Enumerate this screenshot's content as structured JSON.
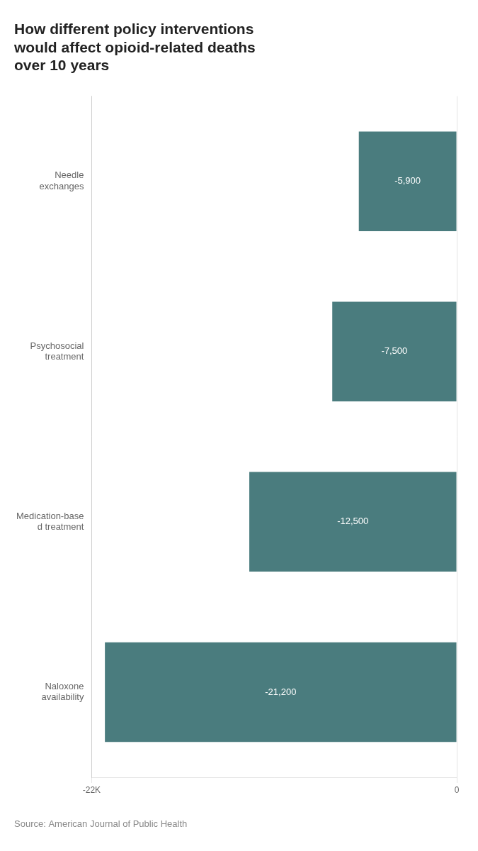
{
  "chart_data": {
    "type": "bar",
    "orientation": "horizontal",
    "title": "How different policy interventions\nwould affect opioid-related deaths\nover 10 years",
    "categories": [
      "Needle\nexchanges",
      "Psychosocial\ntreatment",
      "Medication-base\nd treatment",
      "Naloxone\navailability"
    ],
    "values": [
      -5900,
      -7500,
      -12500,
      -21200
    ],
    "value_labels": [
      "-5,900",
      "-7,500",
      "-12,500",
      "-21,200"
    ],
    "data_labels": true,
    "color": "#4a7c7e",
    "xlim": [
      -22000,
      0
    ],
    "xticks": [
      {
        "value": -22000,
        "label": "-22K"
      },
      0
    ],
    "grid": true,
    "source": "Source: American Journal of Public Health"
  }
}
